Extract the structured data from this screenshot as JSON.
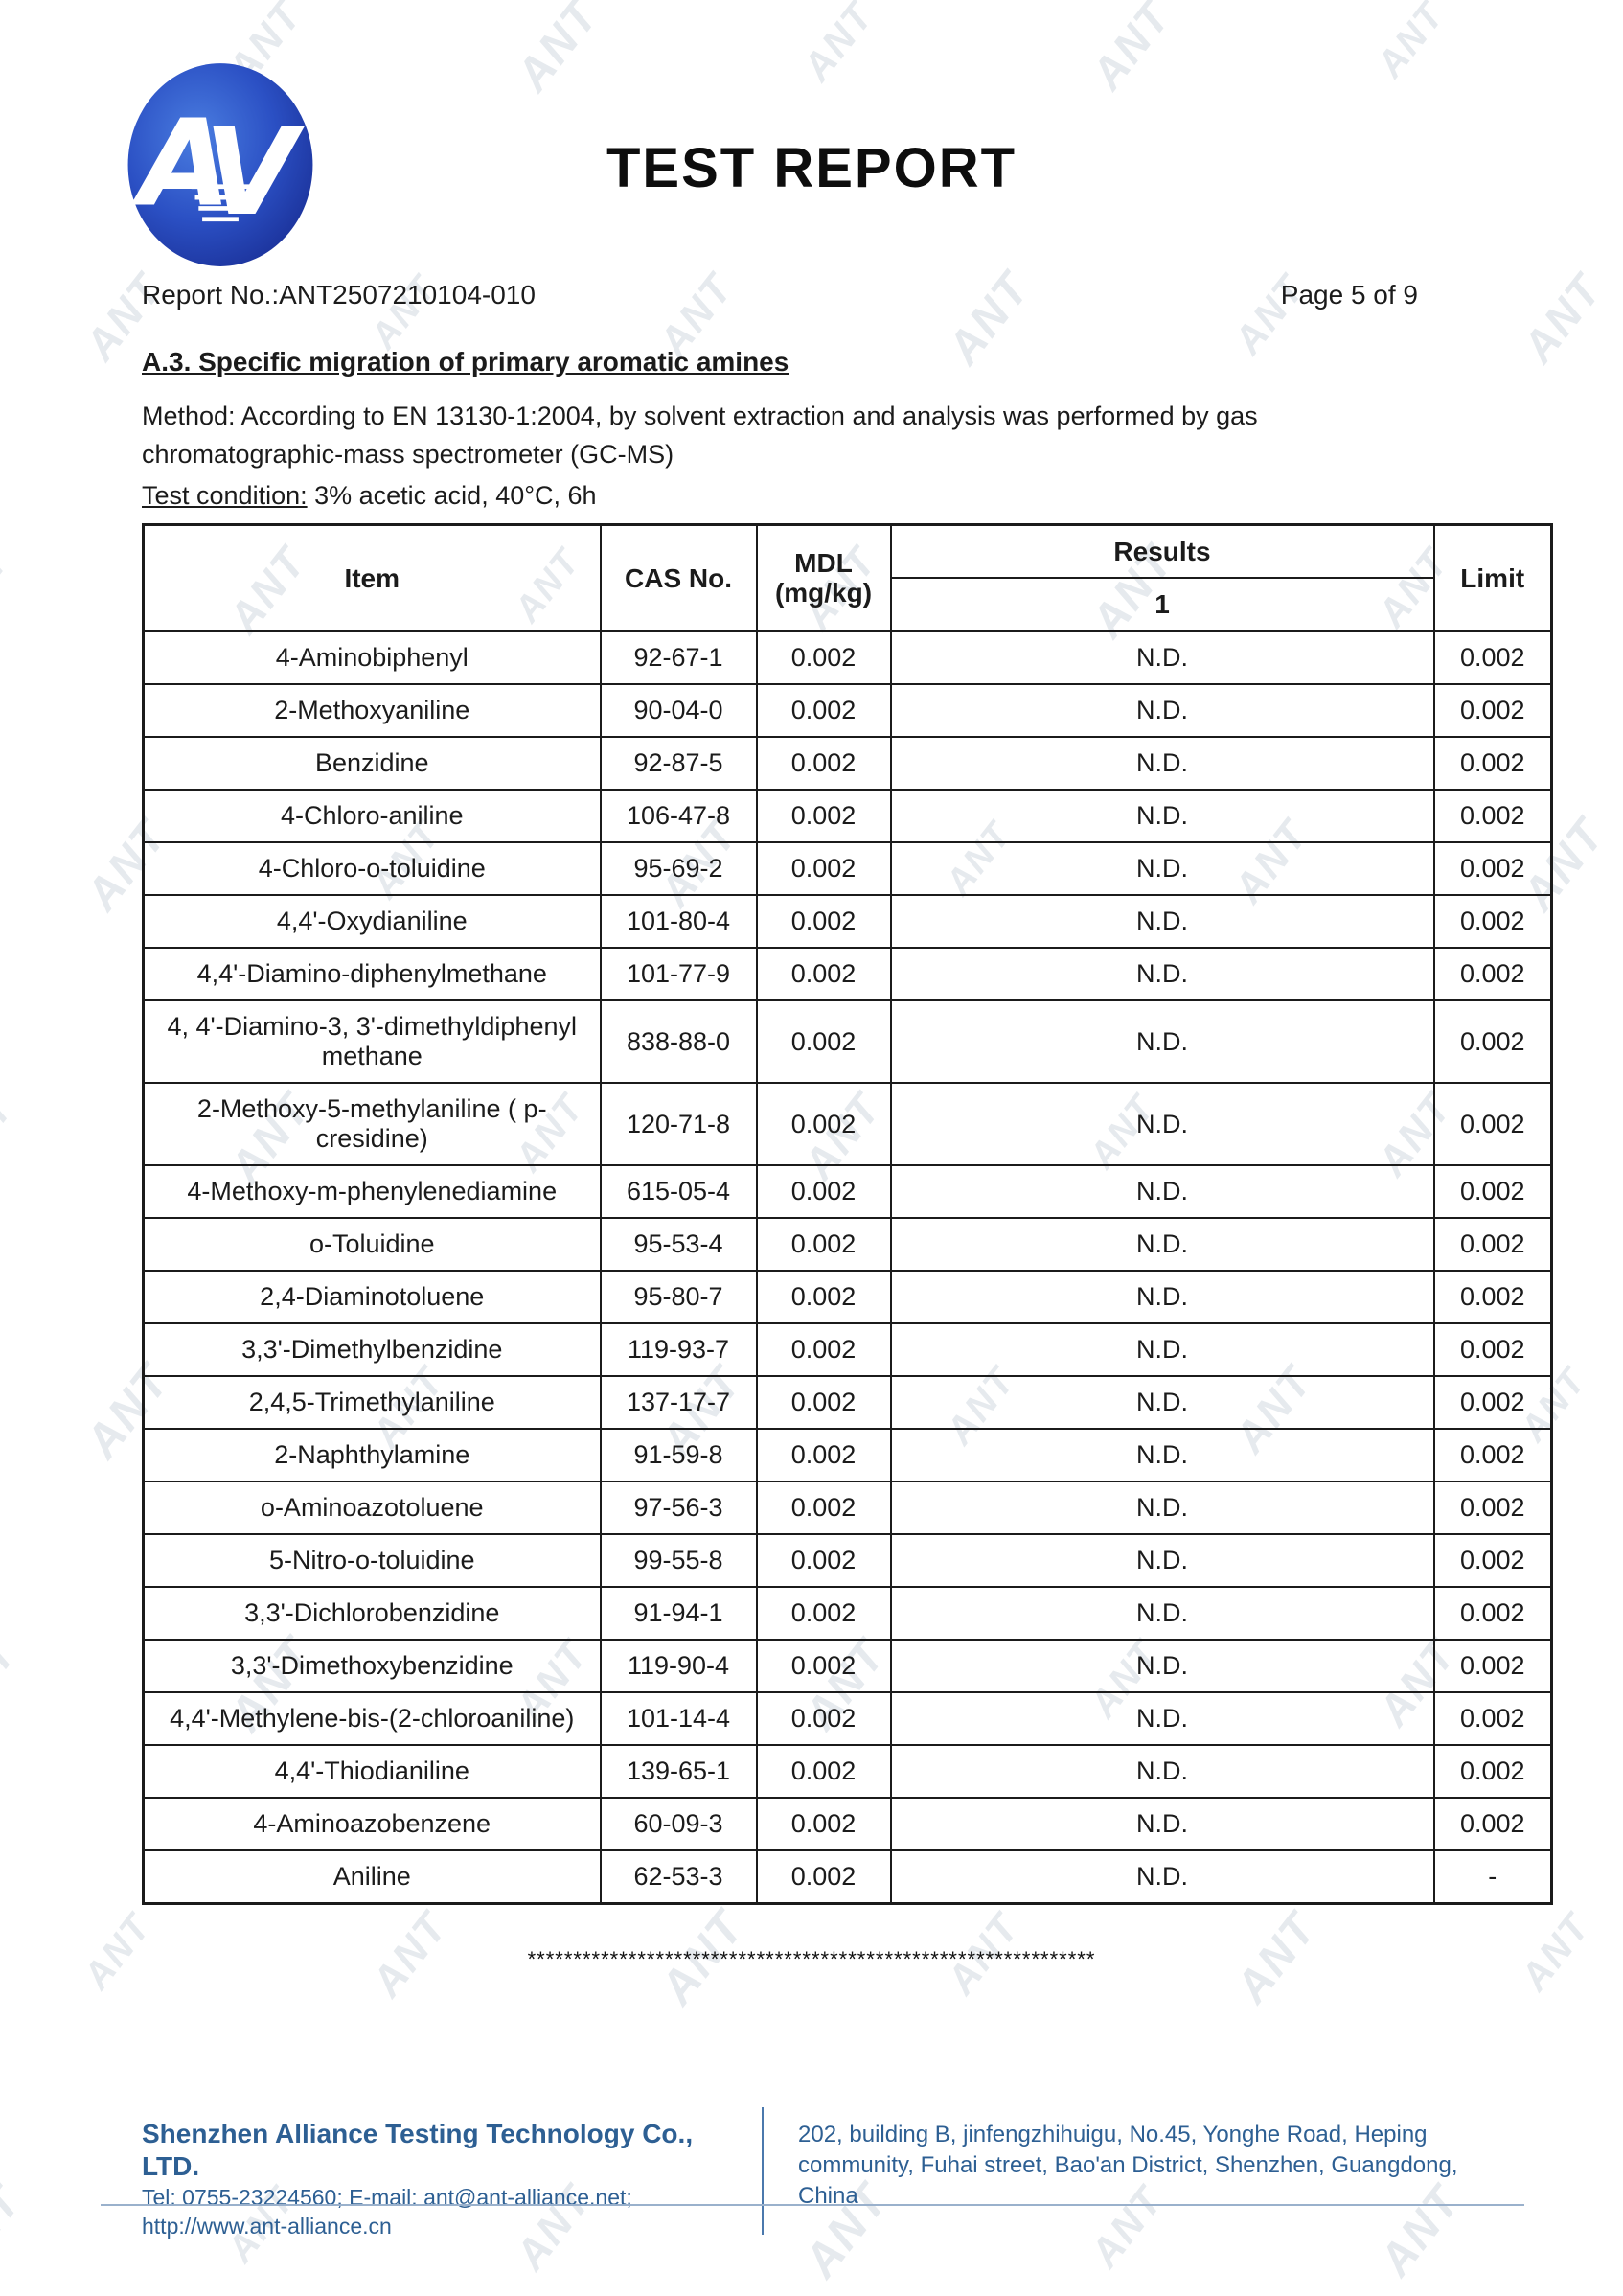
{
  "watermark": {
    "text": "ANT"
  },
  "header": {
    "title": "TEST REPORT",
    "report_no": "Report No.:ANT2507210104-010",
    "page_label": "Page 5 of 9"
  },
  "section": {
    "heading": "A.3. Specific migration of primary aromatic amines",
    "method_text": "Method: According to EN 13130-1:2004, by solvent extraction and analysis was performed by gas chromatographic-mass spectrometer (GC-MS)",
    "condition_label": "Test condition:",
    "condition_value": " 3% acetic acid, 40°C, 6h"
  },
  "table": {
    "headers": {
      "item": "Item",
      "cas": "CAS No.",
      "mdl_line1": "MDL",
      "mdl_line2": "(mg/kg)",
      "results": "Results",
      "results_sub": "1",
      "limit": "Limit"
    },
    "rows": [
      {
        "item": "4-Aminobiphenyl",
        "cas": "92-67-1",
        "mdl": "0.002",
        "result": "N.D.",
        "limit": "0.002"
      },
      {
        "item": "2-Methoxyaniline",
        "cas": "90-04-0",
        "mdl": "0.002",
        "result": "N.D.",
        "limit": "0.002"
      },
      {
        "item": "Benzidine",
        "cas": "92-87-5",
        "mdl": "0.002",
        "result": "N.D.",
        "limit": "0.002"
      },
      {
        "item": "4-Chloro-aniline",
        "cas": "106-47-8",
        "mdl": "0.002",
        "result": "N.D.",
        "limit": "0.002"
      },
      {
        "item": "4-Chloro-o-toluidine",
        "cas": "95-69-2",
        "mdl": "0.002",
        "result": "N.D.",
        "limit": "0.002"
      },
      {
        "item": "4,4'-Oxydianiline",
        "cas": "101-80-4",
        "mdl": "0.002",
        "result": "N.D.",
        "limit": "0.002"
      },
      {
        "item": "4,4'-Diamino-diphenylmethane",
        "cas": "101-77-9",
        "mdl": "0.002",
        "result": "N.D.",
        "limit": "0.002"
      },
      {
        "item": "4, 4'-Diamino-3, 3'-dimethyldiphenyl methane",
        "cas": "838-88-0",
        "mdl": "0.002",
        "result": "N.D.",
        "limit": "0.002"
      },
      {
        "item": "2-Methoxy-5-methylaniline ( p-cresidine)",
        "cas": "120-71-8",
        "mdl": "0.002",
        "result": "N.D.",
        "limit": "0.002"
      },
      {
        "item": "4-Methoxy-m-phenylenediamine",
        "cas": "615-05-4",
        "mdl": "0.002",
        "result": "N.D.",
        "limit": "0.002"
      },
      {
        "item": "o-Toluidine",
        "cas": "95-53-4",
        "mdl": "0.002",
        "result": "N.D.",
        "limit": "0.002"
      },
      {
        "item": "2,4-Diaminotoluene",
        "cas": "95-80-7",
        "mdl": "0.002",
        "result": "N.D.",
        "limit": "0.002"
      },
      {
        "item": "3,3'-Dimethylbenzidine",
        "cas": "119-93-7",
        "mdl": "0.002",
        "result": "N.D.",
        "limit": "0.002"
      },
      {
        "item": "2,4,5-Trimethylaniline",
        "cas": "137-17-7",
        "mdl": "0.002",
        "result": "N.D.",
        "limit": "0.002"
      },
      {
        "item": "2-Naphthylamine",
        "cas": "91-59-8",
        "mdl": "0.002",
        "result": "N.D.",
        "limit": "0.002"
      },
      {
        "item": "o-Aminoazotoluene",
        "cas": "97-56-3",
        "mdl": "0.002",
        "result": "N.D.",
        "limit": "0.002"
      },
      {
        "item": "5-Nitro-o-toluidine",
        "cas": "99-55-8",
        "mdl": "0.002",
        "result": "N.D.",
        "limit": "0.002"
      },
      {
        "item": "3,3'-Dichlorobenzidine",
        "cas": "91-94-1",
        "mdl": "0.002",
        "result": "N.D.",
        "limit": "0.002"
      },
      {
        "item": "3,3'-Dimethoxybenzidine",
        "cas": "119-90-4",
        "mdl": "0.002",
        "result": "N.D.",
        "limit": "0.002"
      },
      {
        "item": "4,4'-Methylene-bis-(2-chloroaniline)",
        "cas": "101-14-4",
        "mdl": "0.002",
        "result": "N.D.",
        "limit": "0.002"
      },
      {
        "item": "4,4'-Thiodianiline",
        "cas": "139-65-1",
        "mdl": "0.002",
        "result": "N.D.",
        "limit": "0.002"
      },
      {
        "item": "4-Aminoazobenzene",
        "cas": "60-09-3",
        "mdl": "0.002",
        "result": "N.D.",
        "limit": "0.002"
      },
      {
        "item": "Aniline",
        "cas": "62-53-3",
        "mdl": "0.002",
        "result": "N.D.",
        "limit": "-"
      }
    ]
  },
  "separator": "**************************************************************",
  "footer": {
    "company": "Shenzhen Alliance Testing Technology Co., LTD.",
    "tel_line": "Tel: 0755-23224560; E-mail: ant@ant-alliance.net;",
    "url_line": "http://www.ant-alliance.cn",
    "address": "202, building B, jinfengzhihuigu, No.45, Yonghe Road, Heping community, Fuhai street, Bao'an District, Shenzhen, Guangdong, China"
  },
  "colors": {
    "footer_blue": "#2d5f93",
    "logo_blue_dark": "#1a2f96",
    "logo_blue_light": "#4a7de0"
  }
}
